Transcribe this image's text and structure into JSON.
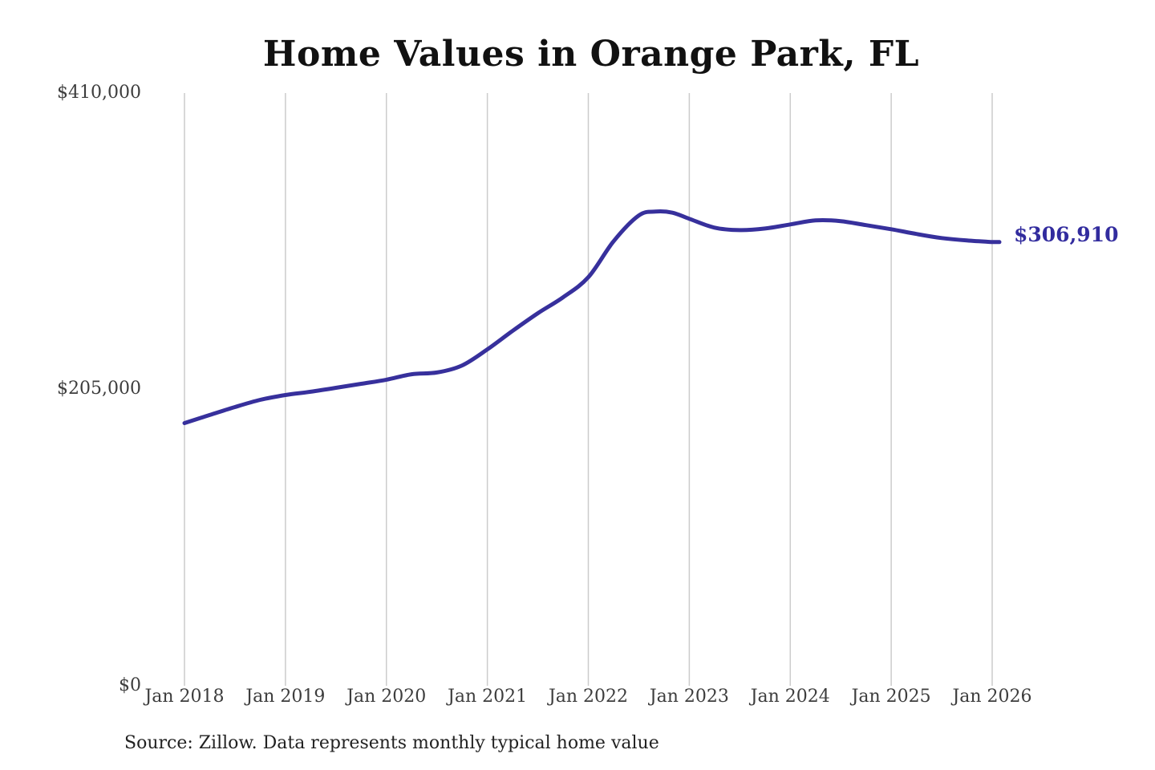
{
  "title": "Home Values in Orange Park, FL",
  "end_label": "$306,910",
  "source_note": "Source: Zillow. Data represents monthly typical home value",
  "y_axis": {
    "ticks": [
      "$410,000",
      "$205,000",
      "$0"
    ]
  },
  "x_axis": {
    "ticks": [
      "Jan 2018",
      "Jan 2019",
      "Jan 2020",
      "Jan 2021",
      "Jan 2022",
      "Jan 2023",
      "Jan 2024",
      "Jan 2025",
      "Jan 2026"
    ]
  },
  "colors": {
    "line": "#37309c",
    "grid": "#cccccc",
    "axis_text": "#3d3d3d",
    "title_text": "#111111",
    "end_label_text": "#322c9e"
  },
  "chart_data": {
    "type": "line",
    "title": "Home Values in Orange Park, FL",
    "series_name": "Typical home value",
    "x_months_from_jan_2018": [
      0,
      3,
      6,
      9,
      12,
      15,
      18,
      21,
      24,
      27,
      30,
      33,
      36,
      39,
      42,
      45,
      48,
      51,
      54,
      56,
      58,
      60,
      63,
      66,
      69,
      72,
      75,
      78,
      81,
      84,
      87,
      90,
      93,
      96
    ],
    "values": [
      181700,
      187300,
      192800,
      197800,
      201100,
      203400,
      206100,
      208900,
      211700,
      215500,
      216700,
      221600,
      232700,
      245500,
      257700,
      268700,
      282600,
      307500,
      325300,
      328000,
      327200,
      323000,
      316900,
      315200,
      316300,
      319100,
      321900,
      321400,
      318600,
      315800,
      312500,
      309700,
      308000,
      306910
    ],
    "x_tick_labels": [
      "Jan 2018",
      "Jan 2019",
      "Jan 2020",
      "Jan 2021",
      "Jan 2022",
      "Jan 2023",
      "Jan 2024",
      "Jan 2025",
      "Jan 2026"
    ],
    "y_tick_labels": [
      "$0",
      "$205,000",
      "$410,000"
    ],
    "y_ticks": [
      0,
      205000,
      410000
    ],
    "ylim": [
      0,
      410000
    ],
    "xlim_months": [
      0,
      96
    ],
    "end_value": 306910,
    "end_value_label": "$306,910",
    "grid": "vertical-only",
    "legend": "none",
    "source": "Source: Zillow. Data represents monthly typical home value"
  }
}
